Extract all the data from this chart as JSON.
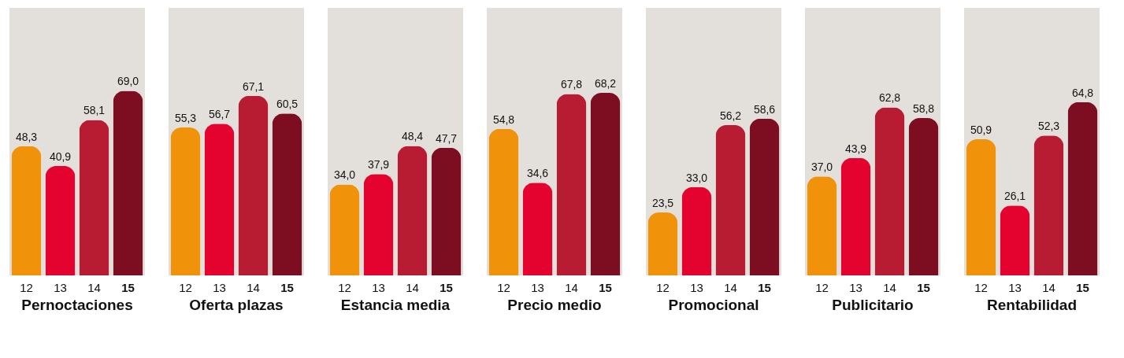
{
  "chart_data": [
    {
      "type": "bar",
      "title": "Pernoctaciones",
      "categories": [
        "12",
        "13",
        "14",
        "15"
      ],
      "values": [
        48.3,
        40.9,
        58.1,
        69.0
      ],
      "value_labels": [
        "48,3",
        "40,9",
        "58,1",
        "69,0"
      ],
      "colors": [
        "#f0920a",
        "#e4032e",
        "#b81c32",
        "#7d0e22"
      ],
      "ylim": [
        0,
        100
      ],
      "tick_labels": "x",
      "grid": false
    },
    {
      "type": "bar",
      "title": "Oferta plazas",
      "categories": [
        "12",
        "13",
        "14",
        "15"
      ],
      "values": [
        55.3,
        56.7,
        67.1,
        60.5
      ],
      "value_labels": [
        "55,3",
        "56,7",
        "67,1",
        "60,5"
      ],
      "colors": [
        "#f0920a",
        "#e4032e",
        "#b81c32",
        "#7d0e22"
      ],
      "ylim": [
        0,
        100
      ],
      "tick_labels": "x",
      "grid": false
    },
    {
      "type": "bar",
      "title": "Estancia media",
      "categories": [
        "12",
        "13",
        "14",
        "15"
      ],
      "values": [
        34.0,
        37.9,
        48.4,
        47.7
      ],
      "value_labels": [
        "34,0",
        "37,9",
        "48,4",
        "47,7"
      ],
      "colors": [
        "#f0920a",
        "#e4032e",
        "#b81c32",
        "#7d0e22"
      ],
      "ylim": [
        0,
        100
      ],
      "tick_labels": "x",
      "grid": false
    },
    {
      "type": "bar",
      "title": "Precio medio",
      "categories": [
        "12",
        "13",
        "14",
        "15"
      ],
      "values": [
        54.8,
        34.6,
        67.8,
        68.2
      ],
      "value_labels": [
        "54,8",
        "34,6",
        "67,8",
        "68,2"
      ],
      "colors": [
        "#f0920a",
        "#e4032e",
        "#b81c32",
        "#7d0e22"
      ],
      "ylim": [
        0,
        100
      ],
      "tick_labels": "x",
      "grid": false
    },
    {
      "type": "bar",
      "title": "Promocional",
      "categories": [
        "12",
        "13",
        "14",
        "15"
      ],
      "values": [
        23.5,
        33.0,
        56.2,
        58.6
      ],
      "value_labels": [
        "23,5",
        "33,0",
        "56,2",
        "58,6"
      ],
      "colors": [
        "#f0920a",
        "#e4032e",
        "#b81c32",
        "#7d0e22"
      ],
      "ylim": [
        0,
        100
      ],
      "tick_labels": "x",
      "grid": false
    },
    {
      "type": "bar",
      "title": "Publicitario",
      "categories": [
        "12",
        "13",
        "14",
        "15"
      ],
      "values": [
        37.0,
        43.9,
        62.8,
        58.8
      ],
      "value_labels": [
        "37,0",
        "43,9",
        "62,8",
        "58,8"
      ],
      "colors": [
        "#f0920a",
        "#e4032e",
        "#b81c32",
        "#7d0e22"
      ],
      "ylim": [
        0,
        100
      ],
      "tick_labels": "x",
      "grid": false
    },
    {
      "type": "bar",
      "title": "Rentabilidad",
      "categories": [
        "12",
        "13",
        "14",
        "15"
      ],
      "values": [
        50.9,
        26.1,
        52.3,
        64.8
      ],
      "value_labels": [
        "50,9",
        "26,1",
        "52,3",
        "64,8"
      ],
      "colors": [
        "#f0920a",
        "#e4032e",
        "#b81c32",
        "#7d0e22"
      ],
      "ylim": [
        0,
        100
      ],
      "tick_labels": "x",
      "grid": false
    }
  ]
}
